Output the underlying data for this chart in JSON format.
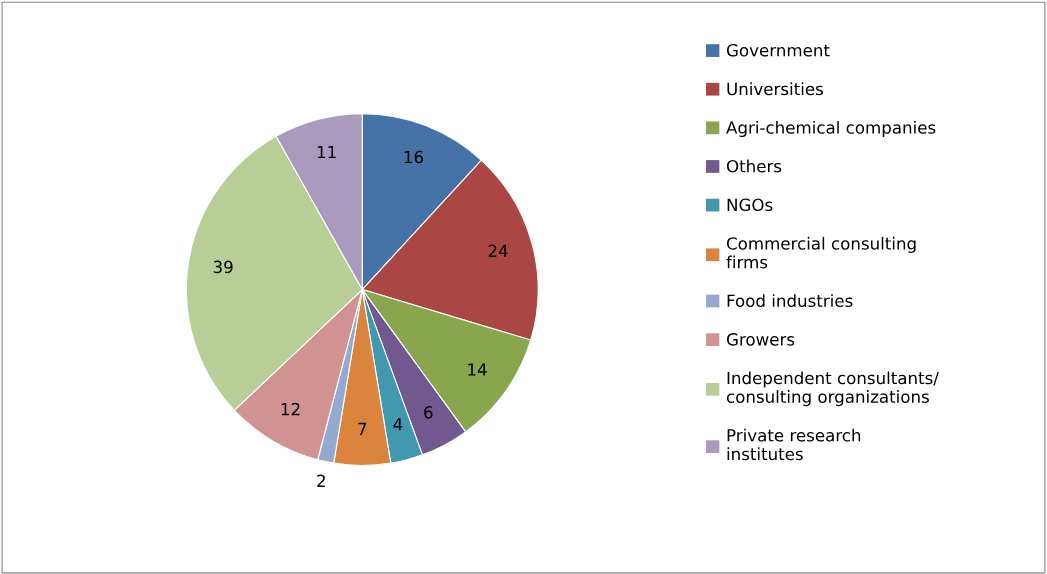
{
  "chart_data": {
    "type": "pie",
    "categories": [
      "Government",
      "Universities",
      "Agri-chemical companies",
      "Others",
      "NGOs",
      "Commercial consulting firms",
      "Food industries",
      "Growers",
      "Independent consultants/ consulting organizations",
      "Private research institutes"
    ],
    "values": [
      16,
      24,
      14,
      6,
      4,
      7,
      2,
      12,
      39,
      11
    ],
    "colors": [
      "#4572a7",
      "#aa4643",
      "#89a54e",
      "#71588f",
      "#4198af",
      "#db843d",
      "#93a9cf",
      "#d19392",
      "#b9cd96",
      "#a99bbd"
    ],
    "data_labels": true,
    "legend": "right"
  }
}
